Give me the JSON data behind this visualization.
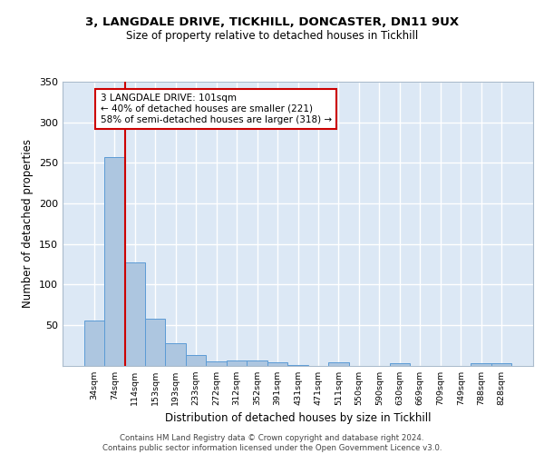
{
  "title1": "3, LANGDALE DRIVE, TICKHILL, DONCASTER, DN11 9UX",
  "title2": "Size of property relative to detached houses in Tickhill",
  "xlabel": "Distribution of detached houses by size in Tickhill",
  "ylabel": "Number of detached properties",
  "categories": [
    "34sqm",
    "74sqm",
    "114sqm",
    "153sqm",
    "193sqm",
    "233sqm",
    "272sqm",
    "312sqm",
    "352sqm",
    "391sqm",
    "431sqm",
    "471sqm",
    "511sqm",
    "550sqm",
    "590sqm",
    "630sqm",
    "669sqm",
    "709sqm",
    "749sqm",
    "788sqm",
    "828sqm"
  ],
  "values": [
    55,
    257,
    127,
    58,
    27,
    13,
    5,
    6,
    6,
    4,
    1,
    0,
    4,
    0,
    0,
    3,
    0,
    0,
    0,
    3,
    3
  ],
  "bar_color": "#adc6e0",
  "bar_edgecolor": "#5b9bd5",
  "background_color": "#dce8f5",
  "grid_color": "#ffffff",
  "annotation_text": "3 LANGDALE DRIVE: 101sqm\n← 40% of detached houses are smaller (221)\n58% of semi-detached houses are larger (318) →",
  "annotation_box_edgecolor": "#cc0000",
  "footer": "Contains HM Land Registry data © Crown copyright and database right 2024.\nContains public sector information licensed under the Open Government Licence v3.0.",
  "ylim": [
    0,
    350
  ],
  "yticks": [
    0,
    50,
    100,
    150,
    200,
    250,
    300,
    350
  ],
  "red_line_index": 1.5
}
